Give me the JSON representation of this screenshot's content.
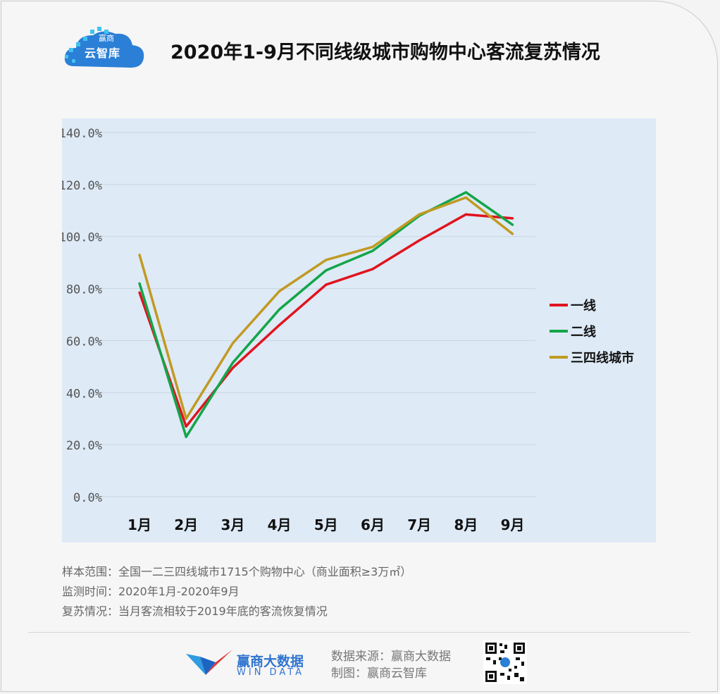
{
  "header": {
    "logo_text": "云智库",
    "logo_small": "赢商",
    "title": "2020年1-9月不同线级城市购物中心客流复苏情况"
  },
  "chart_data": {
    "type": "line",
    "categories": [
      "1月",
      "2月",
      "3月",
      "4月",
      "5月",
      "6月",
      "7月",
      "8月",
      "9月"
    ],
    "y_ticks": [
      "0.0%",
      "20.0%",
      "40.0%",
      "60.0%",
      "80.0%",
      "100.0%",
      "120.0%",
      "140.0%"
    ],
    "ylim": [
      0,
      140
    ],
    "grid": true,
    "legend_position": "right",
    "series": [
      {
        "name": "一线",
        "color": "#e0141e",
        "values": [
          78.5,
          27,
          49.5,
          66,
          81.5,
          87.5,
          98.5,
          108.5,
          107
        ]
      },
      {
        "name": "二线",
        "color": "#13a54a",
        "values": [
          82,
          23,
          51.5,
          72,
          87,
          94.5,
          108,
          117,
          104.5
        ]
      },
      {
        "name": "三四线城市",
        "color": "#c19a22",
        "values": [
          93,
          30,
          59,
          79,
          91,
          96,
          108.5,
          115,
          101
        ]
      }
    ]
  },
  "notes": [
    "样本范围：全国一二三四线城市1715个购物中心（商业面积≥3万㎡）",
    "监测时间：2020年1月-2020年9月",
    "复苏情况：当月客流相较于2019年底的客流恢复情况"
  ],
  "footer": {
    "brand_cn": "赢商大数据",
    "brand_en": "WIN DATA",
    "source_line": "数据来源：赢商大数据",
    "made_by_line": "制图：赢商云智库"
  }
}
